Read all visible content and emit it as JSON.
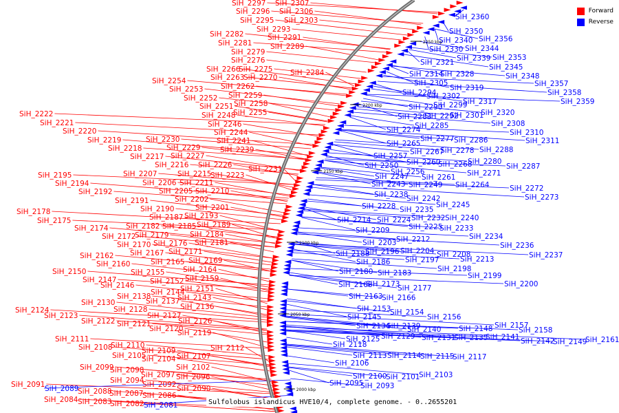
{
  "title": "Sulfolobus islandicus HVE10/4, complete genome. - 0..2655201",
  "legend": {
    "forward_label": "Forward",
    "reverse_label": "Reverse",
    "forward_color": "#ff0000",
    "reverse_color": "#0000ff"
  },
  "ticks": [
    "2250 kbp",
    "2200 kbp",
    "2150 kbp",
    "2100 kbp",
    "2050 kbp",
    "2000 kbp"
  ],
  "forward_genes": [
    "SiH_2297",
    "SiH_2307",
    "SiH_2296",
    "SiH_2306",
    "SiH_2295",
    "SiH_2303",
    "SiH_2293",
    "SiH_2291",
    "SiH_2289",
    "SiH_2282",
    "SiH_2281",
    "SiH_2279",
    "SiH_2276",
    "SiH_2284",
    "SiH_2266",
    "SiH_2275",
    "SiH_2263",
    "SiH_2270",
    "SiH_2254",
    "SiH_2253",
    "SiH_2262",
    "SiH_2259",
    "SiH_2252",
    "SiH_2258",
    "SiH_2251",
    "SiH_2255",
    "SiH_2248",
    "SiH_2246",
    "SiH_2244",
    "SiH_2241",
    "SiH_2239",
    "SiH_2222",
    "SiH_2221",
    "SiH_2220",
    "SiH_2219",
    "SiH_2230",
    "SiH_2218",
    "SiH_2229",
    "SiH_2217",
    "SiH_2227",
    "SiH_2216",
    "SiH_2226",
    "SiH_2231",
    "SiH_2215",
    "SiH_2223",
    "SiH_2195",
    "SiH_2207",
    "SiH_2206",
    "SiH_2211",
    "SiH_2194",
    "SiH_2205",
    "SiH_2210",
    "SiH_2192",
    "SiH_2202",
    "SiH_2191",
    "SiH_2201",
    "SiH_2190",
    "SiH_2178",
    "SiH_2187",
    "SiH_2193",
    "SiH_2175",
    "SiH_2182",
    "SiH_2185",
    "SiH_2189",
    "SiH_2174",
    "SiH_2184",
    "SiH_2172",
    "SiH_2179",
    "SiH_2170",
    "SiH_2176",
    "SiH_2181",
    "SiH_2171",
    "SiH_2167",
    "SiH_2162",
    "SiH_2160",
    "SiH_2165",
    "SiH_2169",
    "SiH_2164",
    "SiH_2150",
    "SiH_2155",
    "SiH_2147",
    "SiH_2152",
    "SiH_2159",
    "SiH_2146",
    "SiH_2151",
    "SiH_2144",
    "SiH_2138",
    "SiH_2143",
    "SiH_2137",
    "SiH_2130",
    "SiH_2136",
    "SiH_2128",
    "SiH_2124",
    "SiH_2123",
    "SiH_2127",
    "SiH_2122",
    "SiH_2121",
    "SiH_2126",
    "SiH_2120",
    "SiH_2119",
    "SiH_2111",
    "SiH_2110",
    "SiH_2108",
    "SiH_2112",
    "SiH_2109",
    "SiH_2105",
    "SiH_2107",
    "SiH_2104",
    "SiH_2099",
    "SiH_2102",
    "SiH_2098",
    "SiH_2097",
    "SiH_2094",
    "SiH_2096",
    "SiH_2092",
    "SiH_2091",
    "SiH_2090",
    "SiH_2088",
    "SiH_2087",
    "SiH_2086",
    "SiH_2084",
    "SiH_2083",
    "SiH_2082"
  ],
  "reverse_genes": [
    "SiH_2360",
    "SiH_2350",
    "SiH_2356",
    "SiH_2340",
    "SiH_2330",
    "SiH_2344",
    "SiH_2339",
    "SiH_2353",
    "SiH_2321",
    "SiH_2345",
    "SiH_2314",
    "SiH_2328",
    "SiH_2348",
    "SiH_2305",
    "SiH_2319",
    "SiH_2357",
    "SiH_2294",
    "SiH_2302",
    "SiH_2358",
    "SiH_2317",
    "SiH_2359",
    "SiH_2290",
    "SiH_2299",
    "SiH_2320",
    "SiH_2283",
    "SiH_2292",
    "SiH_2301",
    "SiH_2285",
    "SiH_2308",
    "SiH_2274",
    "SiH_2310",
    "SiH_2277",
    "SiH_2286",
    "SiH_2311",
    "SiH_2265",
    "SiH_2267",
    "SiH_2278",
    "SiH_2288",
    "SiH_2257",
    "SiH_2260",
    "SiH_2268",
    "SiH_2280",
    "SiH_2250",
    "SiH_2256",
    "SiH_2271",
    "SiH_2287",
    "SiH_2247",
    "SiH_2261",
    "SiH_2243",
    "SiH_2249",
    "SiH_2264",
    "SiH_2272",
    "SiH_2238",
    "SiH_2242",
    "SiH_2273",
    "SiH_2228",
    "SiH_2235",
    "SiH_2245",
    "SiH_2214",
    "SiH_2224",
    "SiH_2232",
    "SiH_2240",
    "SiH_2225",
    "SiH_2233",
    "SiH_2209",
    "SiH_2212",
    "SiH_2234",
    "SiH_2203",
    "SiH_2236",
    "SiH_2188",
    "SiH_2196",
    "SiH_2204",
    "SiH_2208",
    "SiH_2237",
    "SiH_2186",
    "SiH_2197",
    "SiH_2213",
    "SiH_2198",
    "SiH_2180",
    "SiH_2183",
    "SiH_2199",
    "SiH_2200",
    "SiH_2168",
    "SiH_2173",
    "SiH_2177",
    "SiH_2163",
    "SiH_2166",
    "SiH_2153",
    "SiH_2154",
    "SiH_2145",
    "SiH_2156",
    "SiH_2134",
    "SiH_2139",
    "SiH_2157",
    "SiH_2140",
    "SiH_2148",
    "SiH_2158",
    "SiH_2129",
    "SiH_2131",
    "SiH_2135",
    "SiH_2141",
    "SiH_2125",
    "SiH_2142",
    "SiH_2149",
    "SiH_2161",
    "SiH_2118",
    "SiH_2113",
    "SiH_2114",
    "SiH_2115",
    "SiH_2117",
    "SiH_2106",
    "SiH_2100",
    "SiH_2101",
    "SiH_2103",
    "SiH_2095",
    "SiH_2093",
    "SiH_2089",
    "SiH_2081"
  ]
}
